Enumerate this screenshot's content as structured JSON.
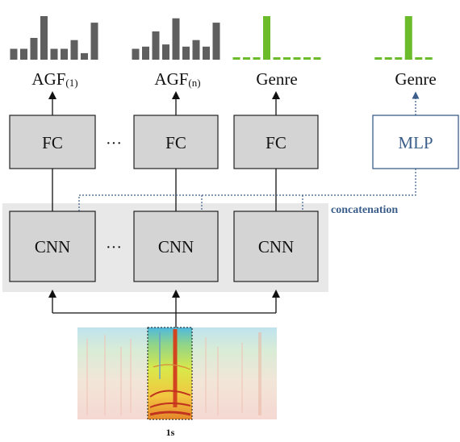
{
  "outputs": {
    "agf_1": {
      "main": "AGF",
      "sub": "(1)"
    },
    "agf_n": {
      "main": "AGF",
      "sub": "(n)"
    },
    "genre_left": "Genre",
    "genre_right": "Genre"
  },
  "layers": {
    "fc": "FC",
    "cnn": "CNN",
    "mlp": "MLP",
    "ellipsis": "···"
  },
  "annotations": {
    "concatenation": "concatenation",
    "window": "1s"
  },
  "colors": {
    "histogram_gray": "#5f5f5f",
    "histogram_green": "#6cbb2a",
    "box_fill": "#d4d4d4",
    "panel_fill": "#e8e8e8",
    "mlp_accent": "#3b5f8a"
  },
  "histograms": {
    "agf_1": [
      0.25,
      0.25,
      0.5,
      1.0,
      0.25,
      0.25,
      0.45,
      0.15,
      0.85
    ],
    "agf_n": [
      0.25,
      0.3,
      0.65,
      0.35,
      0.95,
      0.3,
      0.45,
      0.3,
      0.85
    ],
    "genre_left": [
      0,
      0,
      0,
      1,
      0,
      0,
      0,
      0,
      0
    ],
    "genre_right": [
      0,
      0,
      0,
      1,
      0,
      0
    ]
  }
}
